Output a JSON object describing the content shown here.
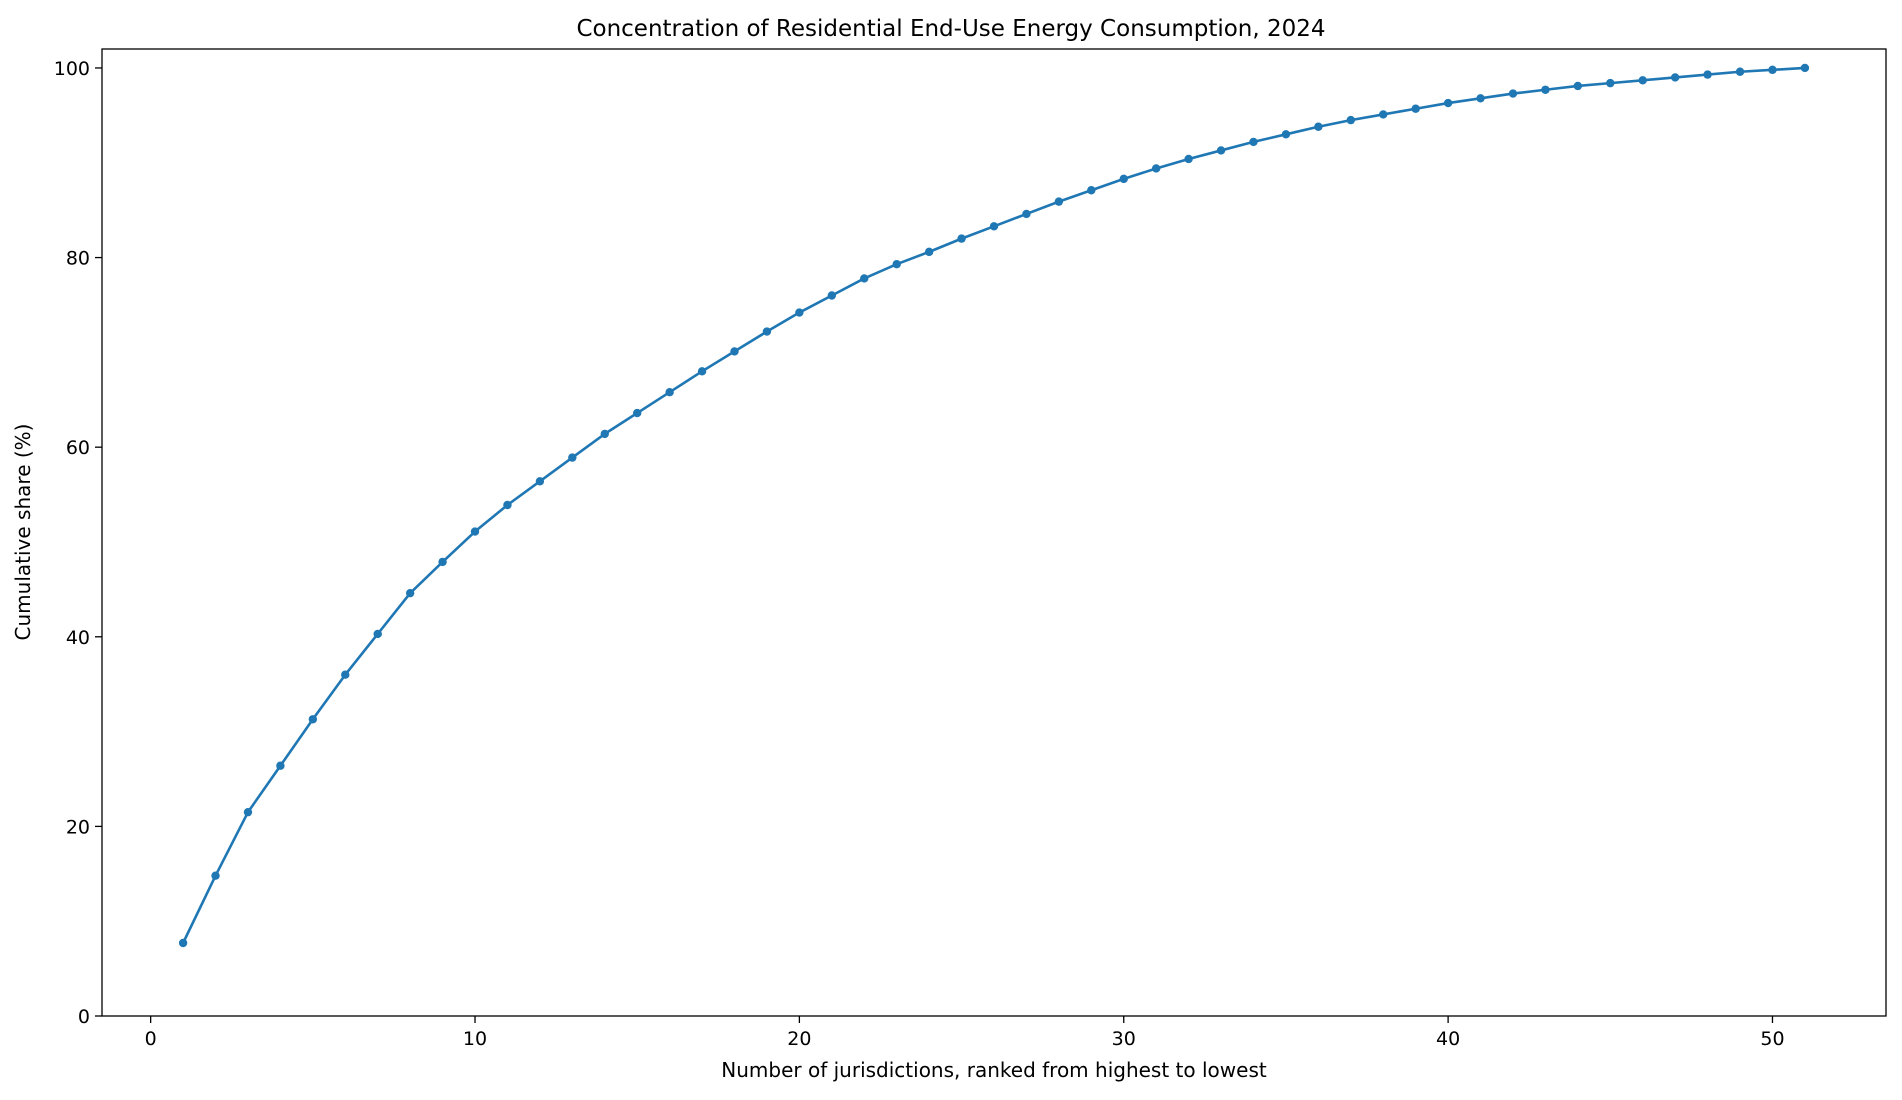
{
  "chart_data": {
    "type": "line",
    "title": "Concentration of Residential End-Use Energy Consumption, 2024",
    "xlabel": "Number of jurisdictions, ranked from highest to lowest",
    "ylabel": "Cumulative share (%)",
    "xlim": [
      -1.5,
      53.5
    ],
    "ylim": [
      0,
      102
    ],
    "xticks": [
      0,
      10,
      20,
      30,
      40,
      50
    ],
    "yticks": [
      0,
      20,
      40,
      60,
      80,
      100
    ],
    "grid": false,
    "legend": "none",
    "series": [
      {
        "color": "#1f77b4",
        "marker": "circle",
        "x": [
          1,
          2,
          3,
          4,
          5,
          6,
          7,
          8,
          9,
          10,
          11,
          12,
          13,
          14,
          15,
          16,
          17,
          18,
          19,
          20,
          21,
          22,
          23,
          24,
          25,
          26,
          27,
          28,
          29,
          30,
          31,
          32,
          33,
          34,
          35,
          36,
          37,
          38,
          39,
          40,
          41,
          42,
          43,
          44,
          45,
          46,
          47,
          48,
          49,
          50,
          51
        ],
        "y": [
          7.7,
          14.8,
          21.5,
          26.4,
          31.3,
          36.0,
          40.3,
          44.6,
          47.9,
          51.1,
          53.9,
          56.4,
          58.9,
          61.4,
          63.6,
          65.8,
          68.0,
          70.1,
          72.2,
          74.2,
          76.0,
          77.8,
          79.3,
          80.6,
          82.0,
          83.3,
          84.6,
          85.9,
          87.1,
          88.3,
          89.4,
          90.4,
          91.3,
          92.2,
          93.0,
          93.8,
          94.5,
          95.1,
          95.7,
          96.3,
          96.8,
          97.3,
          97.7,
          98.1,
          98.4,
          98.7,
          99.0,
          99.3,
          99.6,
          99.8,
          100.0
        ]
      }
    ]
  }
}
